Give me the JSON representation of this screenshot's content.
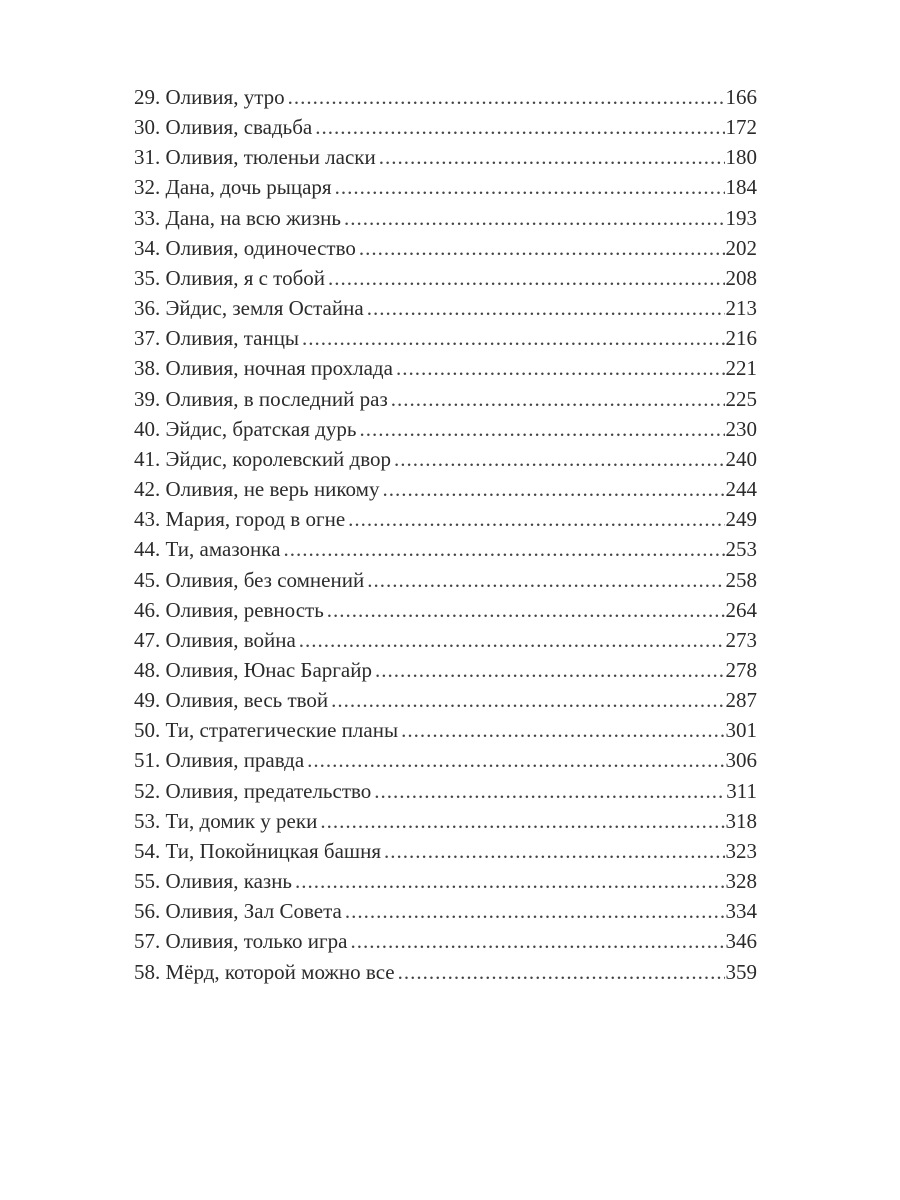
{
  "toc": [
    {
      "title": "29. Оливия, утро",
      "page": "166"
    },
    {
      "title": "30. Оливия, свадьба",
      "page": "172"
    },
    {
      "title": "31. Оливия, тюленьи ласки",
      "page": "180"
    },
    {
      "title": "32. Дана, дочь рыцаря",
      "page": "184"
    },
    {
      "title": "33. Дана, на всю жизнь",
      "page": "193"
    },
    {
      "title": "34. Оливия, одиночество",
      "page": "202"
    },
    {
      "title": "35. Оливия, я с тобой",
      "page": "208"
    },
    {
      "title": "36. Эйдис, земля Остайна",
      "page": "213"
    },
    {
      "title": "37. Оливия, танцы",
      "page": "216"
    },
    {
      "title": "38. Оливия, ночная прохлада",
      "page": "221"
    },
    {
      "title": "39. Оливия, в последний раз",
      "page": "225"
    },
    {
      "title": "40. Эйдис, братская дурь",
      "page": "230"
    },
    {
      "title": "41. Эйдис, королевский двор",
      "page": "240"
    },
    {
      "title": "42. Оливия, не верь никому",
      "page": "244"
    },
    {
      "title": "43. Мария, город в огне",
      "page": "249"
    },
    {
      "title": "44. Ти, амазонка",
      "page": "253"
    },
    {
      "title": "45. Оливия, без сомнений",
      "page": "258"
    },
    {
      "title": "46. Оливия, ревность",
      "page": "264"
    },
    {
      "title": "47. Оливия, война",
      "page": "273"
    },
    {
      "title": "48. Оливия, Юнас Баргайр",
      "page": "278"
    },
    {
      "title": "49. Оливия, весь твой",
      "page": "287"
    },
    {
      "title": "50. Ти, стратегические планы",
      "page": "301"
    },
    {
      "title": "51. Оливия, правда",
      "page": "306"
    },
    {
      "title": "52. Оливия, предательство",
      "page": "311"
    },
    {
      "title": "53. Ти, домик у реки",
      "page": "318"
    },
    {
      "title": "54. Ти, Покойницкая башня",
      "page": "323"
    },
    {
      "title": "55. Оливия, казнь",
      "page": "328"
    },
    {
      "title": "56. Оливия, Зал Совета",
      "page": "334"
    },
    {
      "title": "57. Оливия, только игра",
      "page": "346"
    },
    {
      "title": "58. Мёрд, которой можно все",
      "page": "359"
    }
  ]
}
